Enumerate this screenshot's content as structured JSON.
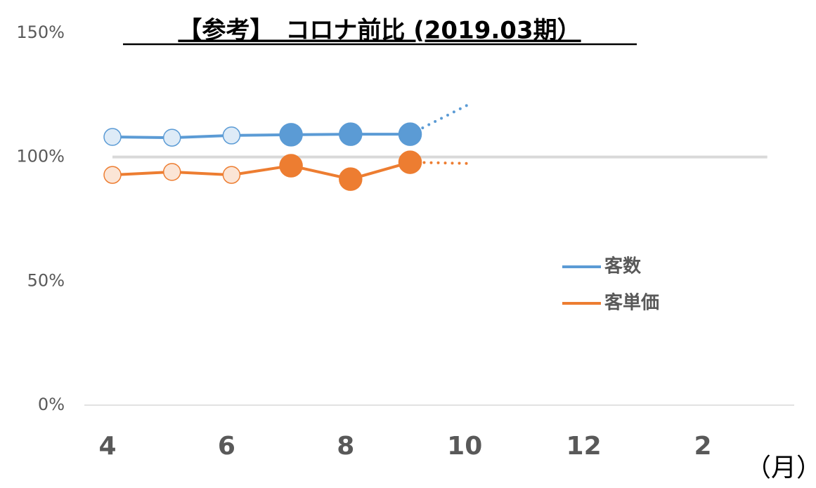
{
  "chart_data": {
    "type": "line",
    "title": "【参考】　コロナ前比 (2019.03期）",
    "x_unit": "（月）",
    "categories": [
      "4",
      null,
      "6",
      null,
      "8",
      null,
      "10",
      null,
      "12",
      null,
      "2",
      null
    ],
    "series": [
      {
        "name": "客数",
        "color": "#5b9bd5",
        "faded_color": "#deebf7",
        "values": [
          108.1,
          107.8,
          108.7,
          109.0,
          109.2,
          109.2,
          null,
          null,
          null,
          null,
          null,
          null
        ],
        "forecast": [
          null,
          null,
          null,
          null,
          null,
          null,
          121.4,
          null,
          null,
          null,
          null,
          null
        ]
      },
      {
        "name": "客単価",
        "color": "#ed7d31",
        "faded_color": "#fbe5d6",
        "values": [
          92.8,
          94.0,
          92.8,
          96.5,
          91.1,
          97.9,
          null,
          null,
          null,
          null,
          null,
          null
        ],
        "forecast": [
          null,
          null,
          null,
          null,
          null,
          null,
          97.4,
          null,
          null,
          null,
          null,
          null
        ]
      }
    ],
    "faded_count": 3,
    "reference_line": 100,
    "reference_color": "#d9d9d9",
    "ylim": [
      0,
      150
    ],
    "yticks": [
      {
        "value": 0,
        "label": "0%"
      },
      {
        "value": 50,
        "label": "50%"
      },
      {
        "value": 100,
        "label": "100%"
      },
      {
        "value": 150,
        "label": "150%"
      }
    ],
    "legend": "right"
  }
}
